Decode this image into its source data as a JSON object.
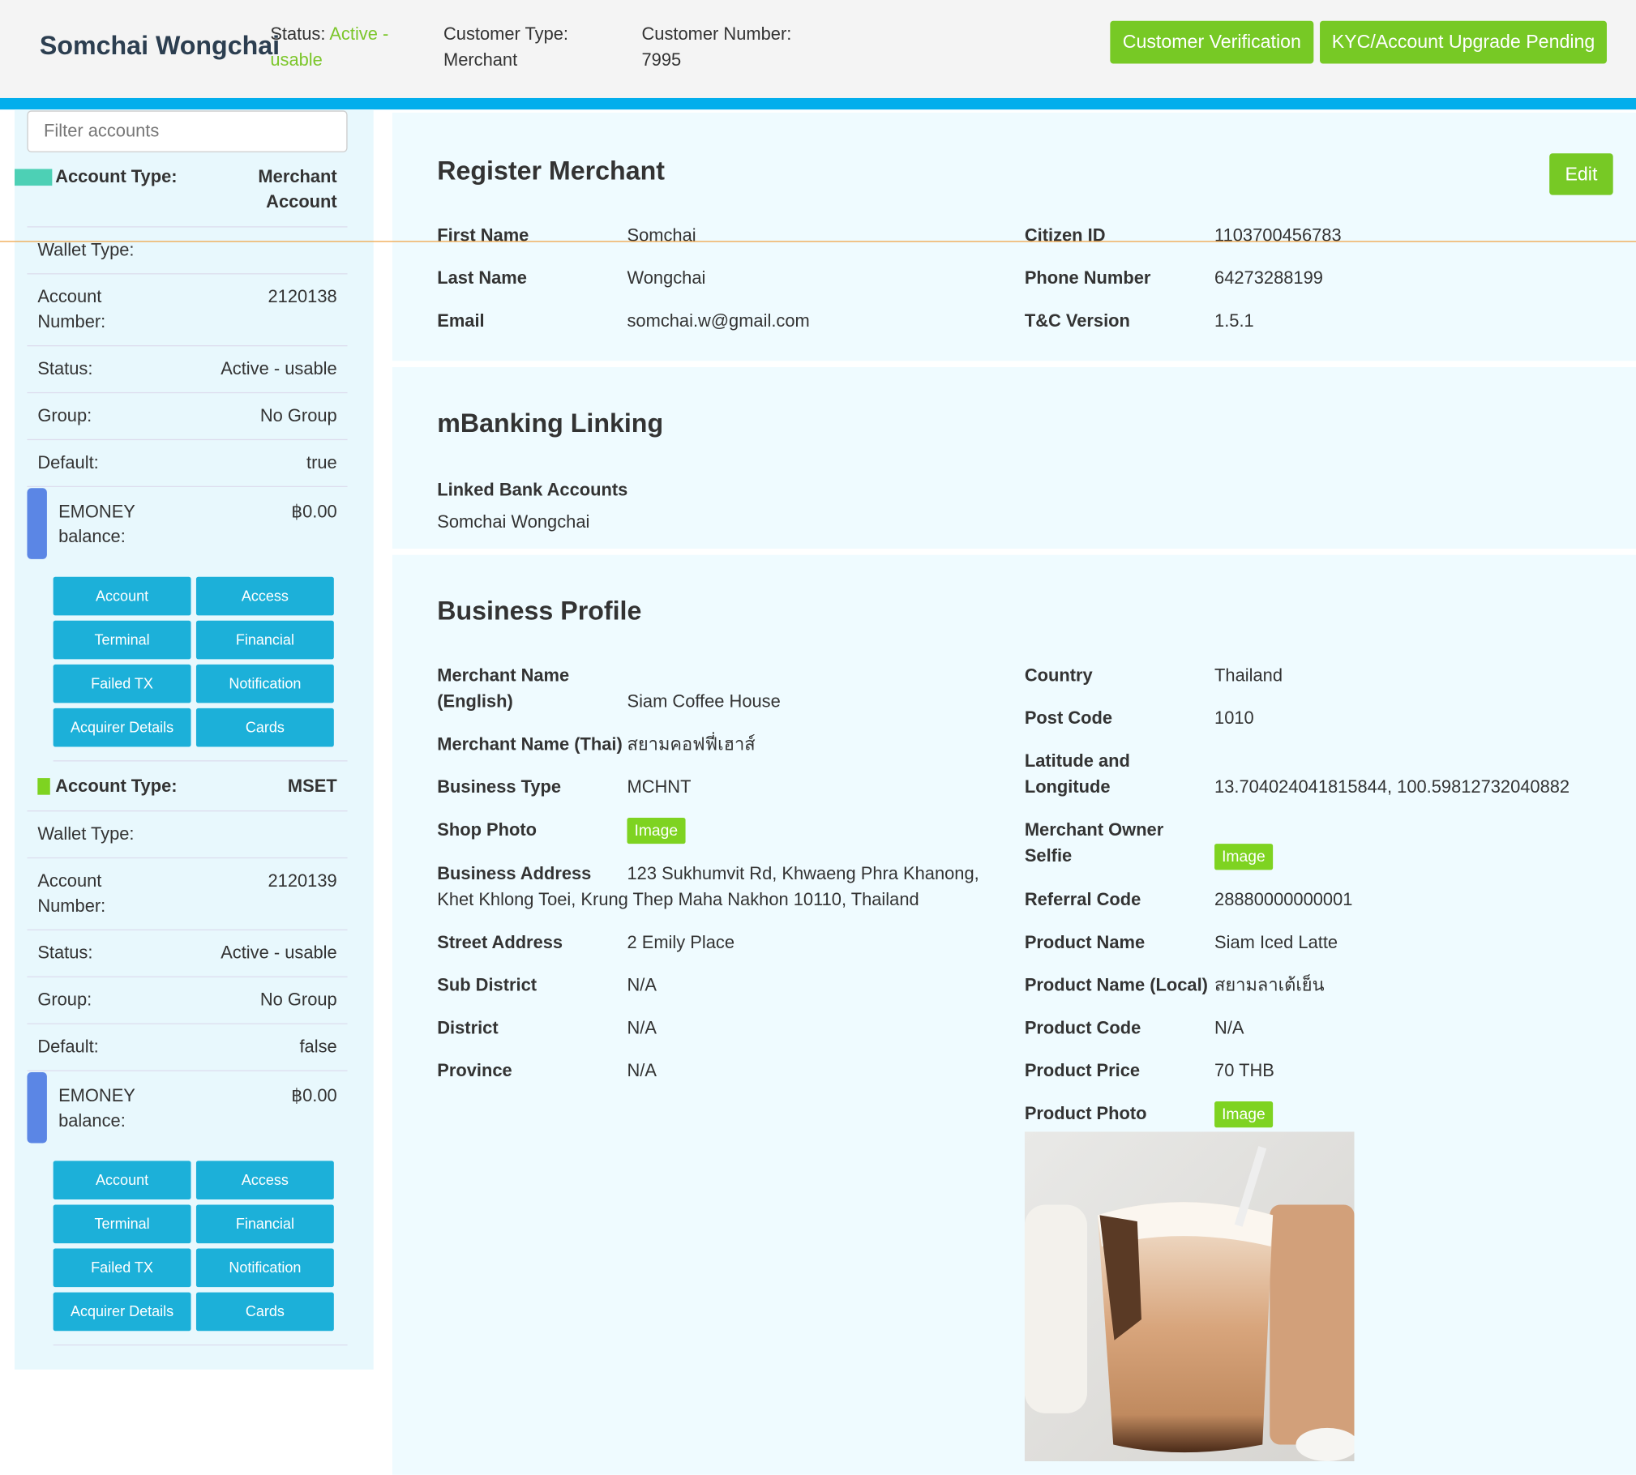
{
  "header": {
    "name": "Somchai Wongchai",
    "status_label": "Status:",
    "status": "Active - usable",
    "customer_type_label": "Customer Type:",
    "customer_type": "Merchant",
    "customer_number_label": "Customer Number:",
    "customer_number": "7995",
    "buttons": [
      "Customer Verification",
      "KYC/Account Upgrade Pending"
    ]
  },
  "sidebar": {
    "filter_placeholder": "Filter accounts",
    "accounts": [
      {
        "type_label": "Account Type:",
        "type": "Merchant Account",
        "rows": [
          {
            "label": "Wallet Type:"
          },
          {
            "label": "Account Number:",
            "value": "2120138"
          },
          {
            "label": "Status:",
            "value": "Active - usable"
          },
          {
            "label": "Group:",
            "value": "No Group"
          },
          {
            "label": "Default:",
            "value": "true"
          }
        ],
        "balance_label": "EMONEY balance:",
        "balance": "฿0.00",
        "actions": [
          "Account",
          "Access",
          "Terminal",
          "Financial",
          "Failed TX",
          "Notification",
          "Acquirer Details",
          "Cards"
        ]
      },
      {
        "type_label": "Account Type:",
        "type": "MSET",
        "rows": [
          {
            "label": "Wallet Type:"
          },
          {
            "label": "Account Number:",
            "value": "2120139"
          },
          {
            "label": "Status:",
            "value": "Active - usable"
          },
          {
            "label": "Group:",
            "value": "No Group"
          },
          {
            "label": "Default:",
            "value": "false"
          }
        ],
        "balance_label": "EMONEY balance:",
        "balance": "฿0.00",
        "actions": [
          "Account",
          "Access",
          "Terminal",
          "Financial",
          "Failed TX",
          "Notification",
          "Acquirer Details",
          "Cards"
        ]
      }
    ]
  },
  "register": {
    "title": "Register Merchant",
    "button": "Edit",
    "left": [
      {
        "label": "First Name",
        "value": "Somchai"
      },
      {
        "label": "Last Name",
        "value": "Wongchai"
      },
      {
        "label": "Email",
        "value": "somchai.w@gmail.com"
      }
    ],
    "right": [
      {
        "label": "Citizen ID",
        "value": "1103700456783"
      },
      {
        "label": "Phone Number",
        "value": "64273288199"
      },
      {
        "label": "T&C Version",
        "value": "1.5.1"
      }
    ]
  },
  "mbanking": {
    "title": "mBanking Linking",
    "label": "Linked Bank Accounts",
    "value": "Somchai Wongchai"
  },
  "business": {
    "title": "Business Profile",
    "left": [
      {
        "label": "Merchant Name (English)",
        "value": "Siam Coffee House"
      },
      {
        "label": "Merchant Name (Thai)",
        "value": "สยามคอฟฟี่เฮาส์"
      },
      {
        "label": "Business Type",
        "value": "MCHNT"
      },
      {
        "label": "Shop Photo",
        "badge": "Image"
      },
      {
        "label": "Business Address",
        "value": "123 Sukhumvit Rd, Khwaeng Phra Khanong, Khet Khlong Toei, Krung Thep Maha Nakhon 10110, Thailand"
      },
      {
        "label": "Street Address",
        "value": "2 Emily Place"
      },
      {
        "label": "Sub District",
        "value": "N/A"
      },
      {
        "label": "District",
        "value": "N/A"
      },
      {
        "label": "Province",
        "value": "N/A"
      }
    ],
    "right": [
      {
        "label": "Country",
        "value": "Thailand"
      },
      {
        "label": "Post Code",
        "value": "1010"
      },
      {
        "label": "Latitude and Longitude",
        "value": "13.704024041815844, 100.59812732040882"
      },
      {
        "label": "Merchant Owner Selfie",
        "badge": "Image"
      },
      {
        "label": "Referral Code",
        "value": "28880000000001"
      },
      {
        "label": "Product Name",
        "value": "Siam Iced Latte"
      },
      {
        "label": "Product Name (Local)",
        "value": "สยามลาเต้เย็น"
      },
      {
        "label": "Product Code",
        "value": "N/A"
      },
      {
        "label": "Product Price",
        "value": "70 THB"
      },
      {
        "label": "Product Photo",
        "badge": "Image"
      }
    ]
  }
}
